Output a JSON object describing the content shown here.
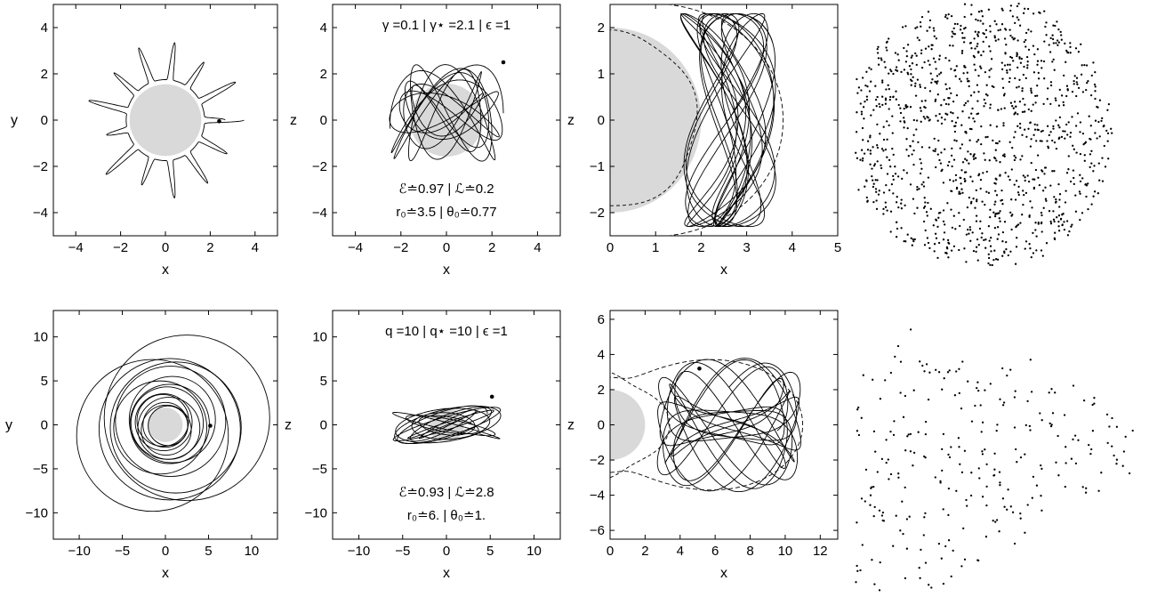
{
  "chart_data": [
    {
      "id": "p1",
      "type": "line",
      "row": 0,
      "col": 0,
      "xlabel": "x",
      "ylabel": "y",
      "xlim": [
        -5,
        5
      ],
      "ylim": [
        -5,
        5
      ],
      "xticks": [
        -4,
        -2,
        0,
        2,
        4
      ],
      "yticks": [
        -4,
        -2,
        0,
        2,
        4
      ],
      "xtick_labels": [
        "−4",
        "−2",
        "0",
        "2",
        "4"
      ],
      "ytick_labels": [
        "−4",
        "−2",
        "0",
        "2",
        "4"
      ],
      "black_hole_radius": 1.6,
      "start_point": [
        2.4,
        -0.05
      ],
      "annotations": []
    },
    {
      "id": "p2",
      "type": "line",
      "row": 0,
      "col": 1,
      "xlabel": "x",
      "ylabel": "z",
      "xlim": [
        -5,
        5
      ],
      "ylim": [
        -5,
        5
      ],
      "xticks": [
        -4,
        -2,
        0,
        2,
        4
      ],
      "yticks": [
        -4,
        -2,
        0,
        2,
        4
      ],
      "xtick_labels": [
        "−4",
        "−2",
        "0",
        "2",
        "4"
      ],
      "ytick_labels": [
        "−4",
        "−2",
        "0",
        "2",
        "4"
      ],
      "black_hole_radius": 1.6,
      "start_point": [
        2.5,
        2.5
      ],
      "annotations": [
        {
          "text": "γ =0.1 | γ⋆ =2.1 | ϵ =1",
          "pos": "top"
        },
        {
          "text": "ℰ≐0.97 | ℒ≐0.2",
          "pos": "bottom-1"
        },
        {
          "text": "r₀≐3.5 | θ₀≐0.77",
          "pos": "bottom-2"
        }
      ]
    },
    {
      "id": "p3",
      "type": "line",
      "row": 0,
      "col": 2,
      "xlabel": "x",
      "ylabel": "z",
      "xlim": [
        0,
        5
      ],
      "ylim": [
        -2.5,
        2.5
      ],
      "xticks": [
        0,
        1,
        2,
        3,
        4,
        5
      ],
      "yticks": [
        -2,
        -1,
        0,
        1,
        2
      ],
      "xtick_labels": [
        "0",
        "1",
        "2",
        "3",
        "4",
        "5"
      ],
      "ytick_labels": [
        "−2",
        "−1",
        "0",
        "1",
        "2"
      ],
      "black_hole_radius": 2.0,
      "zero_velocity_outer_x": 3.7,
      "zero_velocity_inner_x": 1.85,
      "annotations": []
    },
    {
      "id": "p4",
      "type": "scatter",
      "row": 0,
      "col": 3,
      "note": "Poincaré section, no axes drawn"
    },
    {
      "id": "p5",
      "type": "line",
      "row": 1,
      "col": 0,
      "xlabel": "x",
      "ylabel": "y",
      "xlim": [
        -13,
        13
      ],
      "ylim": [
        -13,
        13
      ],
      "xticks": [
        -10,
        -5,
        0,
        5,
        10
      ],
      "yticks": [
        -10,
        -5,
        0,
        5,
        10
      ],
      "xtick_labels": [
        "−10",
        "−5",
        "0",
        "5",
        "10"
      ],
      "ytick_labels": [
        "−10",
        "−5",
        "0",
        "5",
        "10"
      ],
      "black_hole_radius": 2.0,
      "start_point": [
        5.2,
        -0.1
      ],
      "annotations": []
    },
    {
      "id": "p6",
      "type": "line",
      "row": 1,
      "col": 1,
      "xlabel": "x",
      "ylabel": "z",
      "xlim": [
        -13,
        13
      ],
      "ylim": [
        -13,
        13
      ],
      "xticks": [
        -10,
        -5,
        0,
        5,
        10
      ],
      "yticks": [
        -10,
        -5,
        0,
        5,
        10
      ],
      "xtick_labels": [
        "−10",
        "−5",
        "0",
        "5",
        "10"
      ],
      "ytick_labels": [
        "−10",
        "−5",
        "0",
        "5",
        "10"
      ],
      "black_hole_radius": 2.0,
      "start_point": [
        5.2,
        3.2
      ],
      "annotations": [
        {
          "text": "q =10 | q⋆ =10 | ϵ =1",
          "pos": "top"
        },
        {
          "text": "ℰ≐0.93 | ℒ≐2.8",
          "pos": "bottom-1"
        },
        {
          "text": "r₀≐6. | θ₀≐1.",
          "pos": "bottom-2"
        }
      ]
    },
    {
      "id": "p7",
      "type": "line",
      "row": 1,
      "col": 2,
      "xlabel": "x",
      "ylabel": "z",
      "xlim": [
        0,
        13
      ],
      "ylim": [
        -6.5,
        6.5
      ],
      "xticks": [
        0,
        2,
        4,
        6,
        8,
        10,
        12
      ],
      "yticks": [
        -6,
        -4,
        -2,
        0,
        2,
        4,
        6
      ],
      "xtick_labels": [
        "0",
        "2",
        "4",
        "6",
        "8",
        "10",
        "12"
      ],
      "ytick_labels": [
        "−6",
        "−4",
        "−2",
        "0",
        "2",
        "4",
        "6"
      ],
      "black_hole_radius": 2.0,
      "start_point": [
        5.1,
        3.2
      ],
      "annotations": []
    },
    {
      "id": "p8",
      "type": "scatter",
      "row": 1,
      "col": 3,
      "note": "Poincaré section, no axes drawn"
    }
  ]
}
